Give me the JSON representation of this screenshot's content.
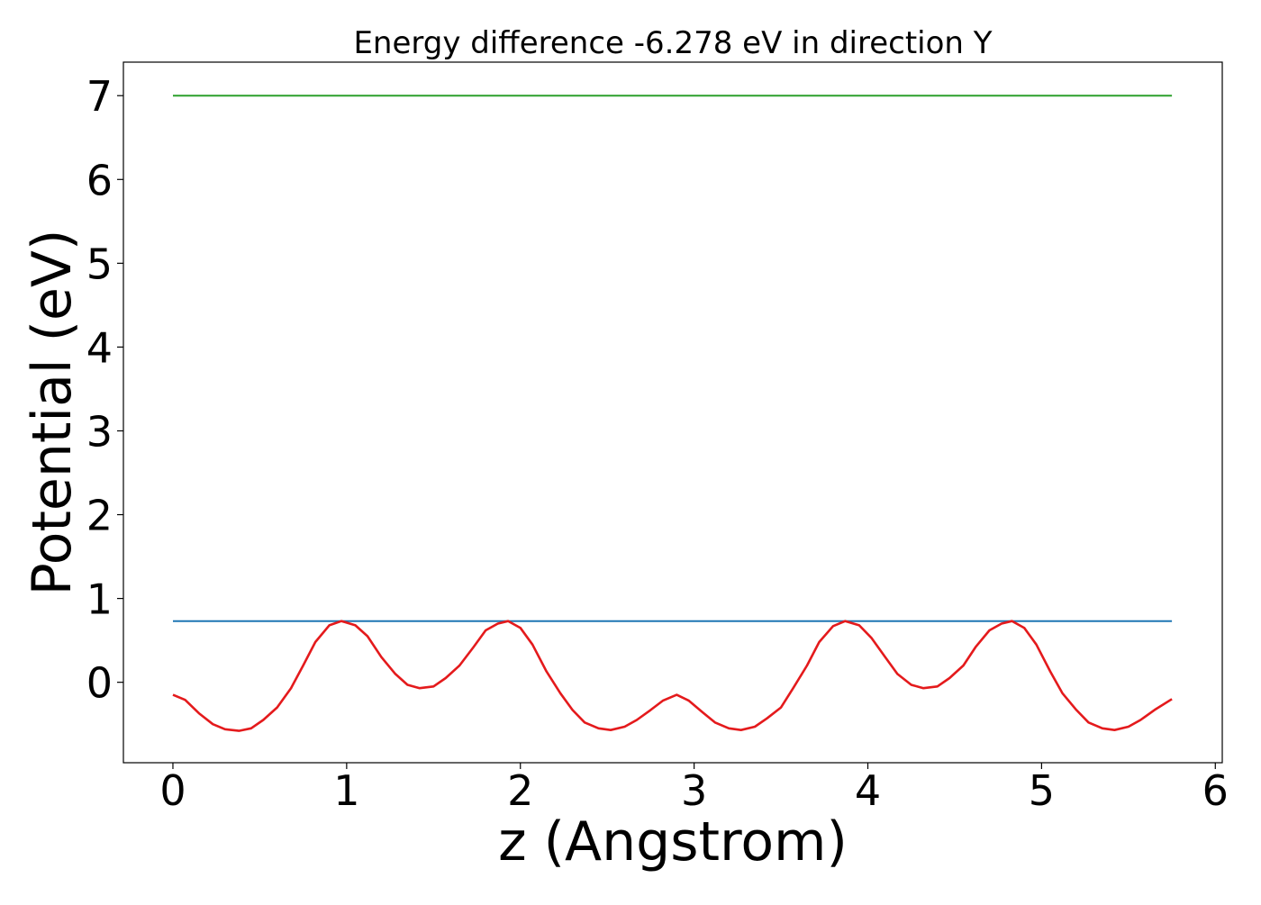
{
  "chart_data": {
    "type": "line",
    "title": "Energy difference -6.278 eV in direction Y",
    "xlabel": "z (Angstrom)",
    "ylabel": "Potential (eV)",
    "xlim": [
      -0.285,
      6.04
    ],
    "ylim": [
      -0.96,
      7.4
    ],
    "xticks": [
      0,
      1,
      2,
      3,
      4,
      5,
      6
    ],
    "xtick_labels": [
      "0",
      "1",
      "2",
      "3",
      "4",
      "5",
      "6"
    ],
    "yticks": [
      0,
      1,
      2,
      3,
      4,
      5,
      6,
      7
    ],
    "ytick_labels": [
      "0",
      "1",
      "2",
      "3",
      "4",
      "5",
      "6",
      "7"
    ],
    "grid": false,
    "legend": "none",
    "series": [
      {
        "color": "#2ca02c",
        "x": [
          0,
          5.75
        ],
        "y": [
          7.0,
          7.0
        ]
      },
      {
        "color": "#1f77b4",
        "x": [
          0,
          5.75
        ],
        "y": [
          0.73,
          0.73
        ]
      },
      {
        "color": "#e41a1c",
        "x": [
          0,
          0.07,
          0.15,
          0.23,
          0.3,
          0.38,
          0.45,
          0.52,
          0.6,
          0.68,
          0.75,
          0.82,
          0.9,
          0.97,
          1.05,
          1.12,
          1.2,
          1.28,
          1.35,
          1.42,
          1.5,
          1.57,
          1.65,
          1.73,
          1.8,
          1.87,
          1.93,
          2.0,
          2.07,
          2.15,
          2.23,
          2.3,
          2.37,
          2.45,
          2.52,
          2.6,
          2.67,
          2.75,
          2.82,
          2.9,
          2.97,
          3.05,
          3.12,
          3.2,
          3.27,
          3.35,
          3.42,
          3.5,
          3.57,
          3.65,
          3.72,
          3.8,
          3.87,
          3.95,
          4.02,
          4.1,
          4.17,
          4.25,
          4.32,
          4.4,
          4.47,
          4.55,
          4.62,
          4.7,
          4.77,
          4.83,
          4.9,
          4.97,
          5.05,
          5.12,
          5.2,
          5.27,
          5.35,
          5.42,
          5.5,
          5.57,
          5.65,
          5.75
        ],
        "y": [
          -0.15,
          -0.21,
          -0.37,
          -0.5,
          -0.56,
          -0.58,
          -0.55,
          -0.45,
          -0.3,
          -0.07,
          0.2,
          0.48,
          0.68,
          0.73,
          0.68,
          0.55,
          0.3,
          0.1,
          -0.03,
          -0.07,
          -0.05,
          0.05,
          0.2,
          0.42,
          0.62,
          0.7,
          0.73,
          0.65,
          0.45,
          0.13,
          -0.13,
          -0.33,
          -0.48,
          -0.55,
          -0.57,
          -0.53,
          -0.45,
          -0.33,
          -0.22,
          -0.15,
          -0.22,
          -0.36,
          -0.48,
          -0.55,
          -0.57,
          -0.53,
          -0.43,
          -0.3,
          -0.07,
          0.2,
          0.48,
          0.67,
          0.73,
          0.68,
          0.53,
          0.3,
          0.1,
          -0.03,
          -0.07,
          -0.05,
          0.05,
          0.2,
          0.42,
          0.62,
          0.7,
          0.73,
          0.65,
          0.45,
          0.13,
          -0.13,
          -0.33,
          -0.48,
          -0.55,
          -0.57,
          -0.53,
          -0.45,
          -0.33,
          -0.2
        ]
      }
    ]
  }
}
